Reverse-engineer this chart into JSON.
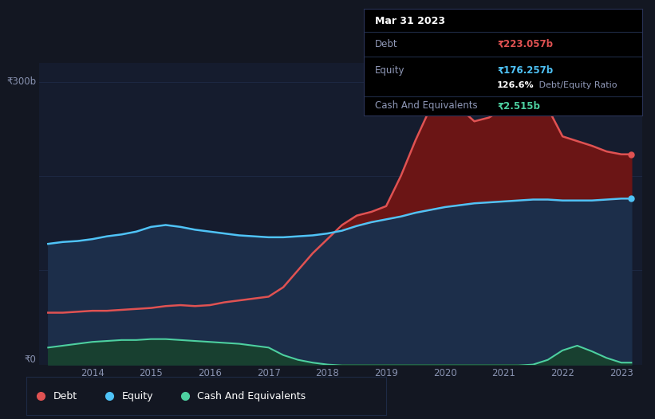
{
  "bg_color": "#131722",
  "plot_bg_color": "#151c2e",
  "grid_color": "#1e2a45",
  "axis_label_color": "#8892b0",
  "years": [
    2013.25,
    2013.5,
    2013.75,
    2014.0,
    2014.25,
    2014.5,
    2014.75,
    2015.0,
    2015.25,
    2015.5,
    2015.75,
    2016.0,
    2016.25,
    2016.5,
    2016.75,
    2017.0,
    2017.25,
    2017.5,
    2017.75,
    2018.0,
    2018.25,
    2018.5,
    2018.75,
    2019.0,
    2019.25,
    2019.5,
    2019.75,
    2020.0,
    2020.25,
    2020.5,
    2020.75,
    2021.0,
    2021.25,
    2021.5,
    2021.75,
    2022.0,
    2022.25,
    2022.5,
    2022.75,
    2023.0,
    2023.17
  ],
  "debt": [
    55,
    55,
    56,
    57,
    57,
    58,
    59,
    60,
    62,
    63,
    62,
    63,
    66,
    68,
    70,
    72,
    82,
    100,
    118,
    133,
    148,
    158,
    162,
    168,
    200,
    238,
    272,
    295,
    272,
    258,
    262,
    272,
    287,
    295,
    272,
    242,
    237,
    232,
    226,
    223,
    223
  ],
  "equity": [
    128,
    130,
    131,
    133,
    136,
    138,
    141,
    146,
    148,
    146,
    143,
    141,
    139,
    137,
    136,
    135,
    135,
    136,
    137,
    139,
    142,
    147,
    151,
    154,
    157,
    161,
    164,
    167,
    169,
    171,
    172,
    173,
    174,
    175,
    175,
    174,
    174,
    174,
    175,
    176,
    176
  ],
  "cash": [
    18,
    20,
    22,
    24,
    25,
    26,
    26,
    27,
    27,
    26,
    25,
    24,
    23,
    22,
    20,
    18,
    10,
    5,
    2,
    0,
    -1,
    -1,
    -1,
    -1,
    -1,
    -1,
    -1,
    -1,
    -1,
    -1,
    -1,
    -1,
    -1,
    0,
    5,
    15,
    20,
    14,
    7,
    2,
    2
  ],
  "debt_color": "#e05252",
  "debt_fill": "#6b1515",
  "equity_color": "#4fc3f7",
  "equity_fill": "#1c2e4a",
  "cash_color": "#4dd0a0",
  "cash_fill": "#184030",
  "ylim": [
    0,
    320
  ],
  "xlim_min": 2013.1,
  "xlim_max": 2023.35,
  "xtick_labels": [
    "2014",
    "2015",
    "2016",
    "2017",
    "2018",
    "2019",
    "2020",
    "2021",
    "2022",
    "2023"
  ],
  "xtick_positions": [
    2014,
    2015,
    2016,
    2017,
    2018,
    2019,
    2020,
    2021,
    2022,
    2023
  ],
  "y300_label": "₹300b",
  "y0_label": "₹0",
  "tooltip_title": "Mar 31 2023",
  "tooltip_debt_label": "Debt",
  "tooltip_debt_value": "₹223.057b",
  "tooltip_equity_label": "Equity",
  "tooltip_equity_value": "₹176.257b",
  "tooltip_ratio_bold": "126.6%",
  "tooltip_ratio_rest": " Debt/Equity Ratio",
  "tooltip_cash_label": "Cash And Equivalents",
  "tooltip_cash_value": "₹2.515b",
  "legend_items": [
    "Debt",
    "Equity",
    "Cash And Equivalents"
  ],
  "legend_colors": [
    "#e05252",
    "#4fc3f7",
    "#4dd0a0"
  ]
}
